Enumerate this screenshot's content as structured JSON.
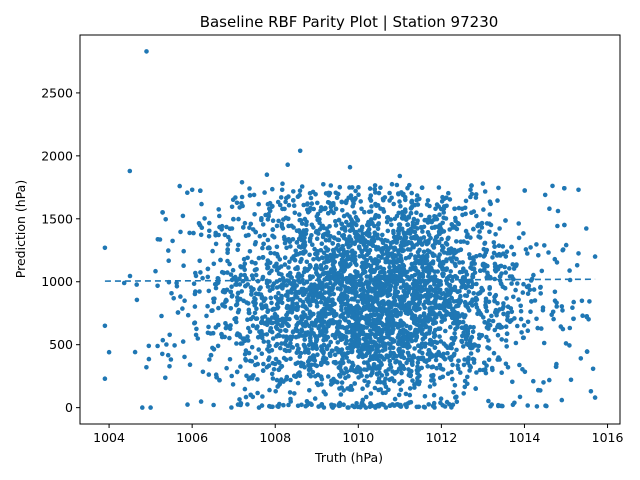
{
  "chart_data": {
    "type": "scatter",
    "title": "Baseline RBF Parity Plot | Station 97230",
    "xlabel": "Truth (hPa)",
    "ylabel": "Prediction (hPa)",
    "xlim": [
      1003.3,
      1016.3
    ],
    "ylim": [
      -130,
      2960
    ],
    "x_ticks": [
      1004,
      1006,
      1008,
      1010,
      1012,
      1014,
      1016
    ],
    "y_ticks": [
      0,
      500,
      1000,
      1500,
      2000,
      2500
    ],
    "grid": false,
    "legend": "none",
    "colors": {
      "points": "#1f77b4",
      "reference_line": "#1f77b4"
    },
    "reference_line": {
      "style": "dashed",
      "x": [
        1003.9,
        1015.7
      ],
      "y": [
        1005,
        1020
      ]
    },
    "point_cloud": {
      "count": 4000,
      "x_center": 1010.2,
      "x_spread": 1.9,
      "y_center": 880,
      "y_spread": 420,
      "y_floor": 0
    },
    "series": [
      {
        "values": [
          {
            "x": 1004.9,
            "y": 2830
          },
          {
            "x": 1008.6,
            "y": 2040
          },
          {
            "x": 1004.5,
            "y": 1880
          },
          {
            "x": 1008.3,
            "y": 1930
          },
          {
            "x": 1009.8,
            "y": 1910
          },
          {
            "x": 1011.0,
            "y": 1840
          },
          {
            "x": 1015.3,
            "y": 1730
          },
          {
            "x": 1003.9,
            "y": 1270
          },
          {
            "x": 1003.9,
            "y": 650
          },
          {
            "x": 1003.9,
            "y": 230
          },
          {
            "x": 1004.0,
            "y": 440
          },
          {
            "x": 1004.8,
            "y": 0
          },
          {
            "x": 1005.0,
            "y": 0
          },
          {
            "x": 1015.7,
            "y": 1200
          },
          {
            "x": 1015.7,
            "y": 80
          },
          {
            "x": 1015.6,
            "y": 130
          },
          {
            "x": 1015.5,
            "y": 720
          },
          {
            "x": 1015.4,
            "y": 730
          },
          {
            "x": 1015.0,
            "y": 510
          },
          {
            "x": 1014.9,
            "y": 60
          },
          {
            "x": 1014.3,
            "y": 10
          },
          {
            "x": 1014.5,
            "y": 1690
          },
          {
            "x": 1014.6,
            "y": 1580
          },
          {
            "x": 1012.7,
            "y": 1730
          },
          {
            "x": 1013.0,
            "y": 1780
          },
          {
            "x": 1005.7,
            "y": 1760
          },
          {
            "x": 1006.0,
            "y": 1730
          },
          {
            "x": 1007.2,
            "y": 1790
          },
          {
            "x": 1007.8,
            "y": 1850
          }
        ]
      }
    ]
  }
}
